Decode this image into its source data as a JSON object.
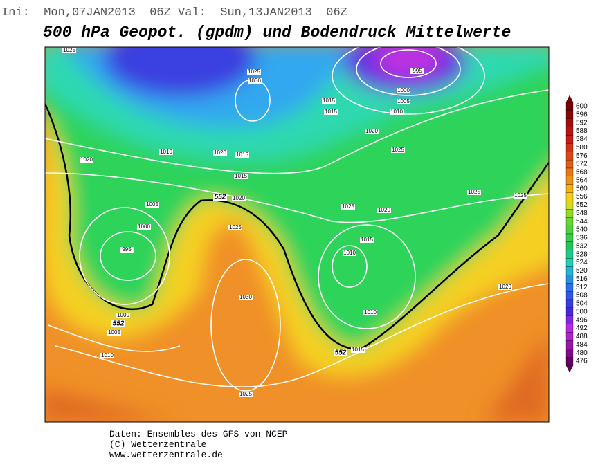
{
  "header": {
    "run": "Ini:  Mon,07JAN2013  06Z Val:  Sun,13JAN2013  06Z",
    "title": "500 hPa Geopot. (gpdm) und Bodendruck Mittelwerte"
  },
  "colorbar": {
    "levels": [
      600,
      596,
      592,
      588,
      584,
      580,
      576,
      572,
      568,
      564,
      560,
      556,
      552,
      548,
      544,
      540,
      536,
      532,
      528,
      524,
      520,
      516,
      512,
      508,
      504,
      500,
      496,
      492,
      488,
      484,
      480,
      476
    ]
  },
  "isobar_labels": [
    "1025",
    "1025",
    "1030",
    "1015",
    "1015",
    "995",
    "1000",
    "1005",
    "1010",
    "1020",
    "1025",
    "1010",
    "1020",
    "1015",
    "1020",
    "1015",
    "1020",
    "1005",
    "1000",
    "995",
    "1025",
    "1025",
    "1020",
    "1025",
    "1025",
    "1015",
    "1010",
    "1020",
    "1030",
    "1010",
    "1000",
    "1005",
    "1010",
    "1015",
    "1025"
  ],
  "contour_552_labels": [
    "552",
    "552",
    "552"
  ],
  "footer": [
    "Daten: Ensembles des GFS von NCEP",
    "(C) Wetterzentrale",
    "www.wetterzentrale.de"
  ]
}
